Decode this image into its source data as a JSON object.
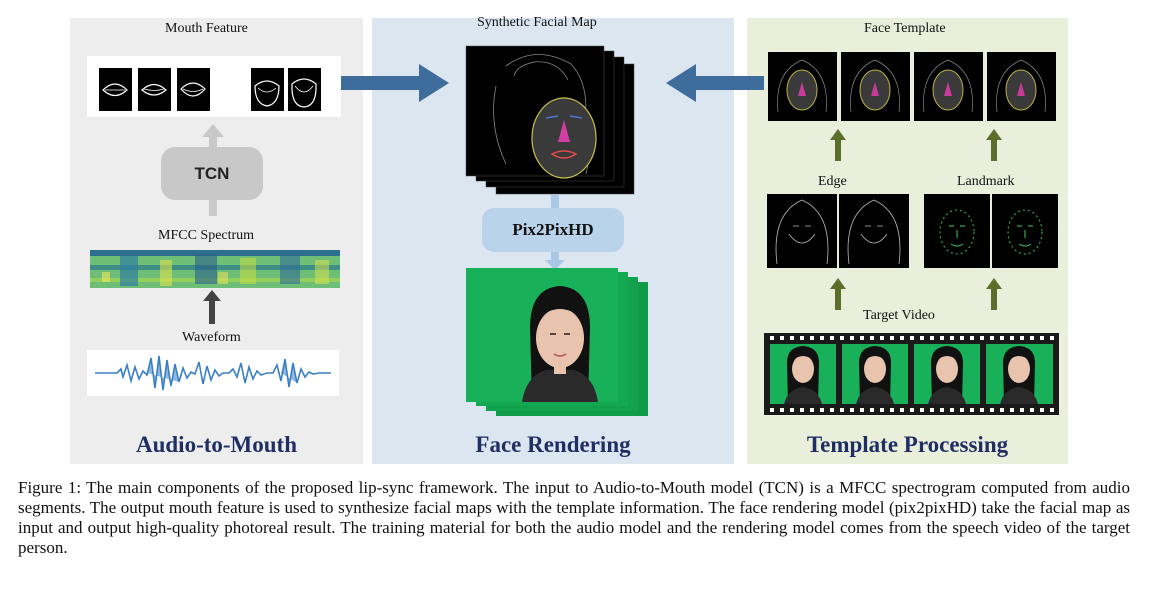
{
  "panels": {
    "left": {
      "title": "Audio-to-Mouth",
      "mouth_feature_label": "Mouth Feature",
      "tcn_label": "TCN",
      "mfcc_label": "MFCC Spectrum",
      "waveform_label": "Waveform"
    },
    "middle": {
      "title": "Face Rendering",
      "synthetic_label": "Synthetic Facial Map",
      "pix_label": "Pix2PixHD"
    },
    "right": {
      "title": "Template Processing",
      "face_template_label": "Face Template",
      "edge_label": "Edge",
      "landmark_label": "Landmark",
      "target_video_label": "Target Video"
    }
  },
  "colors": {
    "arrow_blue": "#3e6d9c",
    "arrow_olive": "#5b6e2a",
    "title_navy": "#1f2f63"
  },
  "caption": "Figure 1: The main components of the proposed lip-sync framework. The input to Audio-to-Mouth model (TCN) is a MFCC spectrogram computed from audio segments. The output mouth feature is used to synthesize facial maps with the template information. The face rendering model (pix2pixHD) take the facial map as input and output high-quality photoreal result. The training material for both the audio model and the rendering model comes from the speech video of the target person."
}
